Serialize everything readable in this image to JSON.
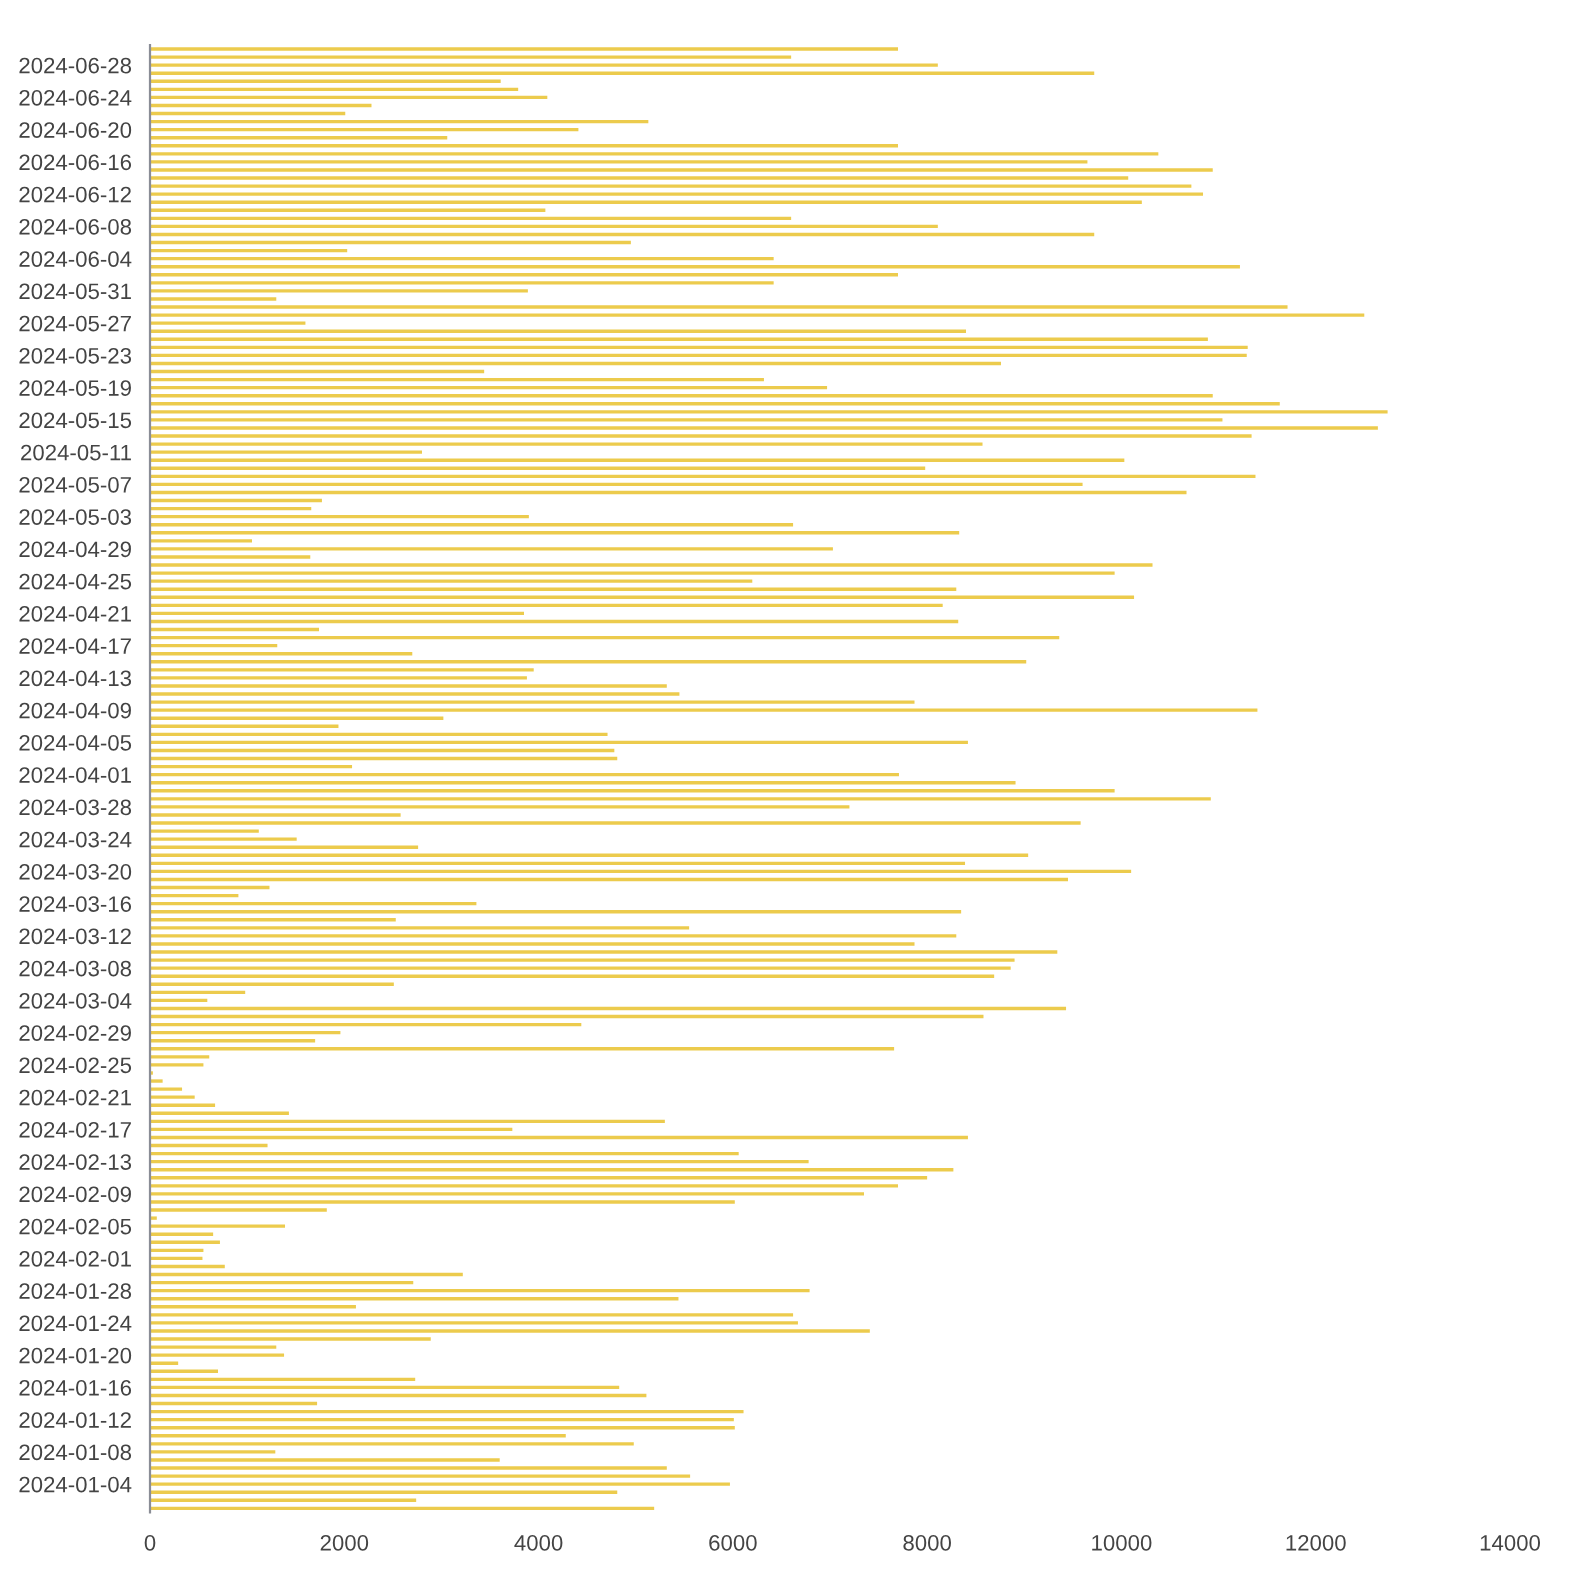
{
  "chart_data": {
    "type": "bar",
    "orientation": "horizontal",
    "color": "#eccb4d",
    "categories": [
      null,
      null,
      "2024-06-28",
      null,
      null,
      null,
      "2024-06-24",
      null,
      null,
      null,
      "2024-06-20",
      null,
      null,
      null,
      "2024-06-16",
      null,
      null,
      null,
      "2024-06-12",
      null,
      null,
      null,
      "2024-06-08",
      null,
      null,
      null,
      "2024-06-04",
      null,
      null,
      null,
      "2024-05-31",
      null,
      null,
      null,
      "2024-05-27",
      null,
      null,
      null,
      "2024-05-23",
      null,
      null,
      null,
      "2024-05-19",
      null,
      null,
      null,
      "2024-05-15",
      null,
      null,
      null,
      "2024-05-11",
      null,
      null,
      null,
      "2024-05-07",
      null,
      null,
      null,
      "2024-05-03",
      null,
      null,
      null,
      "2024-04-29",
      null,
      null,
      null,
      "2024-04-25",
      null,
      null,
      null,
      "2024-04-21",
      null,
      null,
      null,
      "2024-04-17",
      null,
      null,
      null,
      "2024-04-13",
      null,
      null,
      null,
      "2024-04-09",
      null,
      null,
      null,
      "2024-04-05",
      null,
      null,
      null,
      "2024-04-01",
      null,
      null,
      null,
      "2024-03-28",
      null,
      null,
      null,
      "2024-03-24",
      null,
      null,
      null,
      "2024-03-20",
      null,
      null,
      null,
      "2024-03-16",
      null,
      null,
      null,
      "2024-03-12",
      null,
      null,
      null,
      "2024-03-08",
      null,
      null,
      null,
      "2024-03-04",
      null,
      null,
      null,
      "2024-02-29",
      null,
      null,
      null,
      "2024-02-25",
      null,
      null,
      null,
      "2024-02-21",
      null,
      null,
      null,
      "2024-02-17",
      null,
      null,
      null,
      "2024-02-13",
      null,
      null,
      null,
      "2024-02-09",
      null,
      null,
      null,
      "2024-02-05",
      null,
      null,
      null,
      "2024-02-01",
      null,
      null,
      null,
      "2024-01-28",
      null,
      null,
      null,
      "2024-01-24",
      null,
      null,
      null,
      "2024-01-20",
      null,
      null,
      null,
      "2024-01-16",
      null,
      null,
      null,
      "2024-01-12",
      null,
      null,
      null,
      "2024-01-08",
      null,
      null,
      null,
      "2024-01-04",
      null,
      null,
      null
    ],
    "values": [
      7700,
      6600,
      8110,
      9720,
      3610,
      3790,
      4090,
      2280,
      2010,
      5130,
      4410,
      3060,
      7700,
      10380,
      9650,
      10940,
      10070,
      10720,
      10840,
      10210,
      4070,
      6600,
      8110,
      9720,
      4950,
      2030,
      6420,
      11220,
      7700,
      6420,
      3890,
      1300,
      11710,
      12500,
      1600,
      8400,
      10890,
      11300,
      11290,
      8760,
      3440,
      6320,
      6970,
      10940,
      11630,
      12740,
      11040,
      12640,
      11340,
      8570,
      2800,
      10030,
      7980,
      11380,
      9600,
      10670,
      1770,
      1660,
      3900,
      6620,
      8330,
      1050,
      7030,
      1650,
      10320,
      9930,
      6200,
      8300,
      10130,
      8160,
      3850,
      8320,
      1740,
      9360,
      1310,
      2700,
      9020,
      3950,
      3880,
      5320,
      5450,
      7870,
      11400,
      3020,
      1940,
      4710,
      8420,
      4780,
      4810,
      2080,
      7710,
      8910,
      9930,
      10920,
      7200,
      2580,
      9580,
      1120,
      1510,
      2760,
      9040,
      8390,
      10100,
      9450,
      1230,
      910,
      3360,
      8350,
      2530,
      5550,
      8300,
      7870,
      9340,
      8900,
      8860,
      8690,
      2510,
      980,
      590,
      9430,
      8580,
      4440,
      1960,
      1700,
      7660,
      610,
      550,
      30,
      130,
      330,
      460,
      670,
      1430,
      5300,
      3730,
      8420,
      1210,
      6060,
      6780,
      8270,
      8000,
      7700,
      7350,
      6020,
      1820,
      70,
      1390,
      650,
      720,
      550,
      540,
      770,
      3220,
      2710,
      6790,
      5440,
      2120,
      6620,
      6670,
      7410,
      2890,
      1300,
      1380,
      290,
      700,
      2730,
      4830,
      5110,
      1720,
      6110,
      6010,
      6020,
      4280,
      4980,
      1290,
      3600,
      5320,
      5560,
      5970,
      4810,
      2740,
      5190
    ],
    "xlim": [
      0,
      14000
    ],
    "xticks": [
      0,
      2000,
      4000,
      6000,
      8000,
      10000,
      12000,
      14000
    ]
  }
}
